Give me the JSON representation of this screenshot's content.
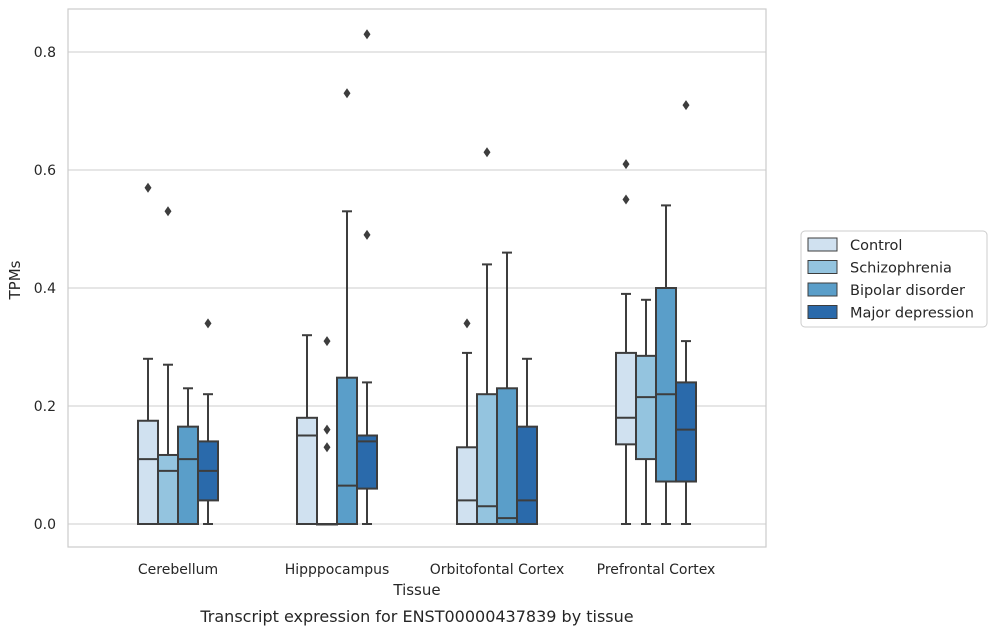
{
  "chart_data": {
    "type": "boxplot",
    "xlabel": "Tissue",
    "ylabel": "TPMs",
    "caption": "Transcript expression for ENST00000437839 by tissue",
    "ylim": [
      -0.04,
      0.875
    ],
    "yticks": [
      0.0,
      0.2,
      0.4,
      0.6,
      0.8
    ],
    "ytick_labels": [
      "0.0",
      "0.2",
      "0.4",
      "0.6",
      "0.8"
    ],
    "grid": "horizontal",
    "legend_position": "right",
    "categories": [
      "Cerebellum",
      "Hipppocampus",
      "Orbitofontal Cortex",
      "Prefrontal Cortex"
    ],
    "series": [
      {
        "name": "Control",
        "color": "#d0e1f0",
        "boxes": [
          {
            "whisker_low": 0.0,
            "q1": 0.0,
            "median": 0.11,
            "q3": 0.175,
            "whisker_high": 0.28,
            "outliers": [
              0.57
            ]
          },
          {
            "whisker_low": 0.0,
            "q1": 0.0,
            "median": 0.15,
            "q3": 0.18,
            "whisker_high": 0.32,
            "outliers": []
          },
          {
            "whisker_low": 0.0,
            "q1": 0.0,
            "median": 0.04,
            "q3": 0.13,
            "whisker_high": 0.29,
            "outliers": [
              0.34
            ]
          },
          {
            "whisker_low": 0.0,
            "q1": 0.135,
            "median": 0.18,
            "q3": 0.29,
            "whisker_high": 0.39,
            "outliers": [
              0.61,
              0.55
            ]
          }
        ]
      },
      {
        "name": "Schizophrenia",
        "color": "#94c4df",
        "boxes": [
          {
            "whisker_low": 0.0,
            "q1": 0.0,
            "median": 0.09,
            "q3": 0.117,
            "whisker_high": 0.27,
            "outliers": [
              0.53
            ]
          },
          {
            "whisker_low": 0.0,
            "q1": 0.0,
            "median": 0.0,
            "q3": 0.0,
            "whisker_high": 0.0,
            "outliers": [
              0.31,
              0.16,
              0.13
            ]
          },
          {
            "whisker_low": 0.0,
            "q1": 0.0,
            "median": 0.03,
            "q3": 0.22,
            "whisker_high": 0.44,
            "outliers": [
              0.63
            ]
          },
          {
            "whisker_low": 0.0,
            "q1": 0.11,
            "median": 0.215,
            "q3": 0.285,
            "whisker_high": 0.38,
            "outliers": []
          }
        ]
      },
      {
        "name": "Bipolar disorder",
        "color": "#5a9ec9",
        "boxes": [
          {
            "whisker_low": 0.0,
            "q1": 0.0,
            "median": 0.11,
            "q3": 0.165,
            "whisker_high": 0.23,
            "outliers": []
          },
          {
            "whisker_low": 0.0,
            "q1": 0.0,
            "median": 0.065,
            "q3": 0.248,
            "whisker_high": 0.53,
            "outliers": [
              0.73
            ]
          },
          {
            "whisker_low": 0.0,
            "q1": 0.0,
            "median": 0.01,
            "q3": 0.23,
            "whisker_high": 0.46,
            "outliers": []
          },
          {
            "whisker_low": 0.0,
            "q1": 0.072,
            "median": 0.22,
            "q3": 0.4,
            "whisker_high": 0.54,
            "outliers": []
          }
        ]
      },
      {
        "name": "Major depression",
        "color": "#2a6aab",
        "boxes": [
          {
            "whisker_low": 0.0,
            "q1": 0.04,
            "median": 0.09,
            "q3": 0.14,
            "whisker_high": 0.22,
            "outliers": [
              0.34
            ]
          },
          {
            "whisker_low": 0.0,
            "q1": 0.06,
            "median": 0.14,
            "q3": 0.15,
            "whisker_high": 0.24,
            "outliers": [
              0.83,
              0.49
            ]
          },
          {
            "whisker_low": 0.0,
            "q1": 0.0,
            "median": 0.04,
            "q3": 0.165,
            "whisker_high": 0.28,
            "outliers": []
          },
          {
            "whisker_low": 0.0,
            "q1": 0.072,
            "median": 0.16,
            "q3": 0.24,
            "whisker_high": 0.31,
            "outliers": [
              0.71
            ]
          }
        ]
      }
    ]
  }
}
